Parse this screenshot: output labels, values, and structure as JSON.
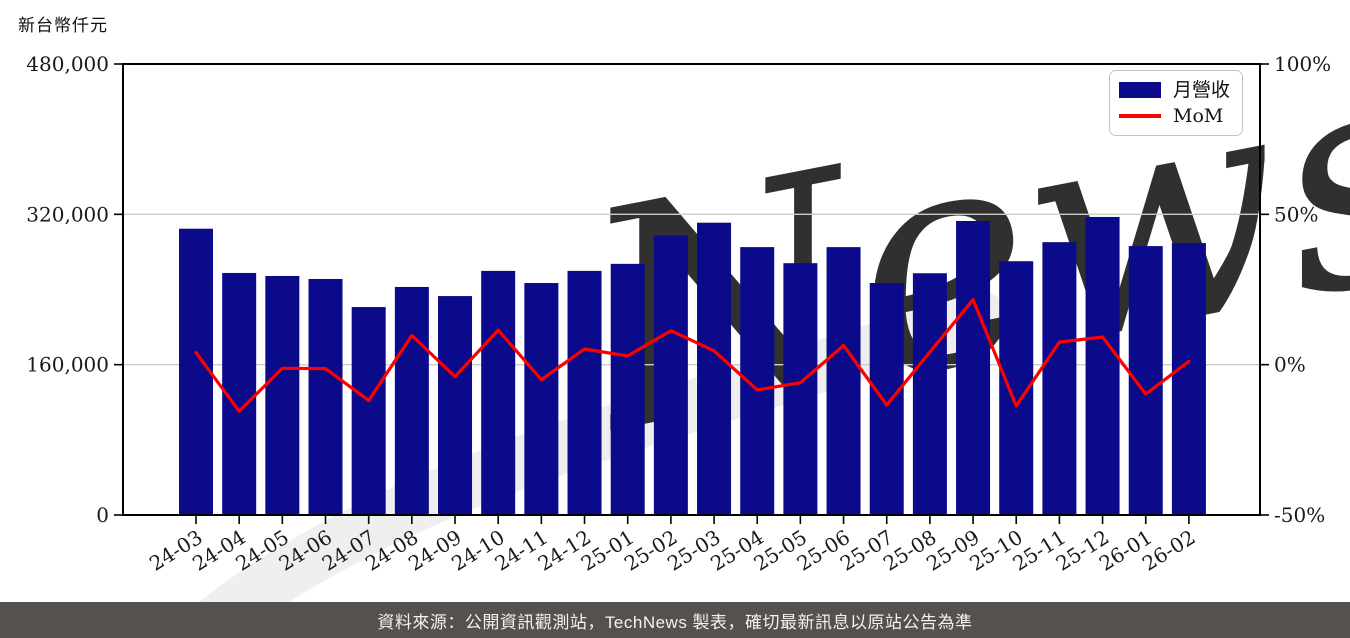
{
  "title": "新台幣仟元",
  "legend": {
    "revenue_label": "月營收",
    "mom_label": "MoM"
  },
  "footer": {
    "text": "資料來源：公開資訊觀測站，TechNews 製表，確切最新訊息以原站公告為準"
  },
  "watermark": {
    "text": "News"
  },
  "colors": {
    "bar": "#0a0a8a",
    "line": "#ff0000",
    "grid": "#cccccc",
    "spine": "#000000",
    "tick_label": "#1a1a1a",
    "footer_bg": "#55514e",
    "watermark_pink": "#f6e1e1",
    "watermark_gray": "#ededed"
  },
  "chart_data": {
    "type": "bar",
    "title": "",
    "categories": [
      "24-03",
      "24-04",
      "24-05",
      "24-06",
      "24-07",
      "24-08",
      "24-09",
      "24-10",
      "24-11",
      "24-12",
      "25-01",
      "25-02",
      "25-03",
      "25-04",
      "25-05",
      "25-06",
      "25-07",
      "25-08",
      "25-09",
      "25-10",
      "25-11",
      "25-12",
      "26-01",
      "26-02"
    ],
    "series": [
      {
        "name": "月營收",
        "type": "bar",
        "axis": "left",
        "unit": "新台幣仟元",
        "values": [
          304700,
          257600,
          254400,
          251200,
          221300,
          242700,
          233000,
          259800,
          246900,
          259800,
          267300,
          297500,
          311100,
          285100,
          268000,
          285100,
          246900,
          257300,
          312900,
          270100,
          290400,
          317200,
          286200,
          289400
        ]
      },
      {
        "name": "MoM",
        "type": "line",
        "axis": "right",
        "unit": "%",
        "values": [
          4.0,
          -15.5,
          -1.2,
          -1.3,
          -11.9,
          9.7,
          -4.0,
          11.5,
          -5.0,
          5.2,
          2.9,
          11.3,
          4.6,
          -8.4,
          -6.0,
          6.4,
          -13.4,
          4.2,
          21.6,
          -13.7,
          7.5,
          9.2,
          -9.8,
          1.1
        ]
      }
    ],
    "left_axis": {
      "label": "新台幣仟元",
      "range": [
        0,
        480000
      ],
      "tick_values": [
        480000,
        320000,
        160000,
        0
      ],
      "tick_labels": [
        "480,000",
        "320,000",
        "160,000",
        "0"
      ]
    },
    "right_axis": {
      "label": "MoM",
      "range": [
        -50,
        100
      ],
      "tick_values": [
        100,
        50,
        0,
        -50
      ],
      "tick_labels": [
        "100%",
        "50%",
        "0%",
        "-50%"
      ]
    },
    "grid": "horizontal",
    "legend_position": "top-right",
    "x_tick_rotation": 32
  }
}
